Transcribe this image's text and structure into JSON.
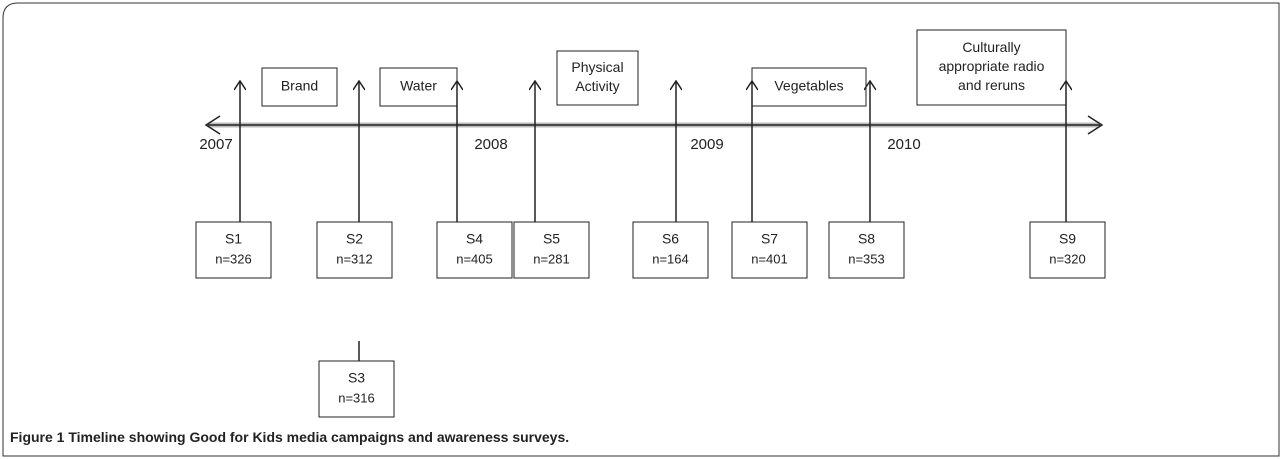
{
  "campaigns": [
    {
      "lines": [
        "Brand"
      ]
    },
    {
      "lines": [
        "Water"
      ]
    },
    {
      "lines": [
        "Physical",
        "Activity"
      ]
    },
    {
      "lines": [
        "Vegetables"
      ]
    },
    {
      "lines": [
        "Culturally",
        "appropriate radio",
        "and reruns"
      ]
    }
  ],
  "years": [
    "2007",
    "2008",
    "2009",
    "2010"
  ],
  "surveys": [
    {
      "id": "S1",
      "n": "n=326"
    },
    {
      "id": "S2",
      "n": "n=312"
    },
    {
      "id": "S3",
      "n": "n=316"
    },
    {
      "id": "S4",
      "n": "n=405"
    },
    {
      "id": "S5",
      "n": "n=281"
    },
    {
      "id": "S6",
      "n": "n=164"
    },
    {
      "id": "S7",
      "n": "n=401"
    },
    {
      "id": "S8",
      "n": "n=353"
    },
    {
      "id": "S9",
      "n": "n=320"
    }
  ],
  "caption": {
    "label": "Figure 1",
    "text": "Timeline showing Good for Kids media campaigns and awareness surveys."
  }
}
